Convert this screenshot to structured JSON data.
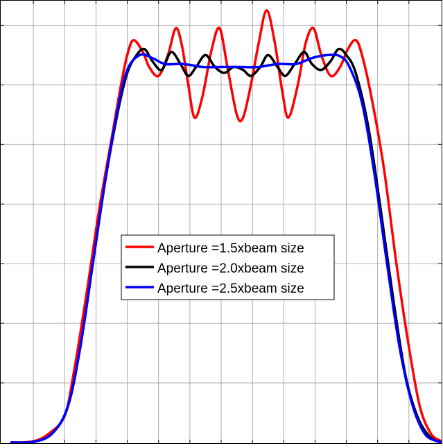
{
  "chart_data": {
    "type": "line",
    "title": "",
    "xlabel": "",
    "ylabel": "",
    "xlim": [
      0,
      14
    ],
    "ylim": [
      0,
      7.4
    ],
    "x_gridlines": [
      1,
      2,
      3,
      4,
      5,
      6,
      7,
      8,
      9,
      10,
      11,
      12,
      13
    ],
    "y_gridlines": [
      1,
      2,
      3,
      4,
      5,
      6,
      7
    ],
    "grid": true,
    "tick_labels_visible": false,
    "legend_position": "center",
    "series": [
      {
        "name": "Aperture =1.5xbeam size",
        "color": "#ff0000",
        "points": [
          [
            0.3,
            0.0
          ],
          [
            1.0,
            0.02
          ],
          [
            1.5,
            0.15
          ],
          [
            2.0,
            0.45
          ],
          [
            2.3,
            1.2
          ],
          [
            2.7,
            2.5
          ],
          [
            3.1,
            3.9
          ],
          [
            3.5,
            5.1
          ],
          [
            3.8,
            6.0
          ],
          [
            4.0,
            6.5
          ],
          [
            4.2,
            6.75
          ],
          [
            4.5,
            6.55
          ],
          [
            4.7,
            6.3
          ],
          [
            5.0,
            6.15
          ],
          [
            5.3,
            6.5
          ],
          [
            5.55,
            6.95
          ],
          [
            5.75,
            6.65
          ],
          [
            5.95,
            6.0
          ],
          [
            6.15,
            5.45
          ],
          [
            6.4,
            5.8
          ],
          [
            6.7,
            6.6
          ],
          [
            6.95,
            6.95
          ],
          [
            7.2,
            6.3
          ],
          [
            7.5,
            5.5
          ],
          [
            7.7,
            5.45
          ],
          [
            7.95,
            6.0
          ],
          [
            8.2,
            6.7
          ],
          [
            8.45,
            7.25
          ],
          [
            8.7,
            6.75
          ],
          [
            8.95,
            5.9
          ],
          [
            9.15,
            5.45
          ],
          [
            9.45,
            6.0
          ],
          [
            9.7,
            6.7
          ],
          [
            9.95,
            6.95
          ],
          [
            10.2,
            6.5
          ],
          [
            10.5,
            6.15
          ],
          [
            10.8,
            6.3
          ],
          [
            11.05,
            6.6
          ],
          [
            11.3,
            6.75
          ],
          [
            11.5,
            6.5
          ],
          [
            11.8,
            5.8
          ],
          [
            12.2,
            4.6
          ],
          [
            12.6,
            3.0
          ],
          [
            13.0,
            1.6
          ],
          [
            13.35,
            0.6
          ],
          [
            13.7,
            0.15
          ],
          [
            14.0,
            0.03
          ]
        ]
      },
      {
        "name": "Aperture =2.0xbeam size",
        "color": "#000000",
        "points": [
          [
            0.3,
            0.0
          ],
          [
            1.0,
            0.01
          ],
          [
            1.6,
            0.15
          ],
          [
            2.1,
            0.6
          ],
          [
            2.5,
            1.6
          ],
          [
            2.9,
            3.0
          ],
          [
            3.3,
            4.4
          ],
          [
            3.7,
            5.55
          ],
          [
            4.0,
            6.2
          ],
          [
            4.3,
            6.5
          ],
          [
            4.55,
            6.6
          ],
          [
            4.8,
            6.4
          ],
          [
            5.1,
            6.25
          ],
          [
            5.4,
            6.55
          ],
          [
            5.7,
            6.35
          ],
          [
            5.95,
            6.15
          ],
          [
            6.2,
            6.3
          ],
          [
            6.5,
            6.5
          ],
          [
            6.8,
            6.3
          ],
          [
            7.1,
            6.2
          ],
          [
            7.4,
            6.3
          ],
          [
            7.7,
            6.25
          ],
          [
            7.95,
            6.15
          ],
          [
            8.25,
            6.3
          ],
          [
            8.5,
            6.5
          ],
          [
            8.8,
            6.3
          ],
          [
            9.05,
            6.15
          ],
          [
            9.35,
            6.35
          ],
          [
            9.65,
            6.55
          ],
          [
            9.9,
            6.35
          ],
          [
            10.2,
            6.25
          ],
          [
            10.5,
            6.4
          ],
          [
            10.75,
            6.6
          ],
          [
            11.0,
            6.5
          ],
          [
            11.3,
            6.2
          ],
          [
            11.7,
            5.3
          ],
          [
            12.1,
            3.9
          ],
          [
            12.5,
            2.4
          ],
          [
            12.9,
            1.1
          ],
          [
            13.3,
            0.4
          ],
          [
            13.7,
            0.08
          ],
          [
            14.0,
            0.01
          ]
        ]
      },
      {
        "name": "Aperture =2.5xbeam size",
        "color": "#0000ff",
        "points": [
          [
            0.3,
            0.0
          ],
          [
            1.0,
            0.01
          ],
          [
            1.6,
            0.15
          ],
          [
            2.1,
            0.6
          ],
          [
            2.5,
            1.6
          ],
          [
            2.9,
            3.0
          ],
          [
            3.3,
            4.4
          ],
          [
            3.7,
            5.6
          ],
          [
            4.0,
            6.25
          ],
          [
            4.4,
            6.5
          ],
          [
            4.8,
            6.45
          ],
          [
            5.2,
            6.35
          ],
          [
            5.8,
            6.35
          ],
          [
            6.4,
            6.3
          ],
          [
            7.0,
            6.3
          ],
          [
            7.6,
            6.3
          ],
          [
            8.2,
            6.3
          ],
          [
            8.8,
            6.35
          ],
          [
            9.4,
            6.35
          ],
          [
            9.9,
            6.45
          ],
          [
            10.4,
            6.5
          ],
          [
            10.8,
            6.48
          ],
          [
            11.1,
            6.3
          ],
          [
            11.5,
            5.7
          ],
          [
            11.9,
            4.5
          ],
          [
            12.3,
            3.0
          ],
          [
            12.7,
            1.6
          ],
          [
            13.1,
            0.65
          ],
          [
            13.5,
            0.15
          ],
          [
            13.9,
            0.02
          ],
          [
            14.0,
            0.01
          ]
        ]
      }
    ]
  }
}
